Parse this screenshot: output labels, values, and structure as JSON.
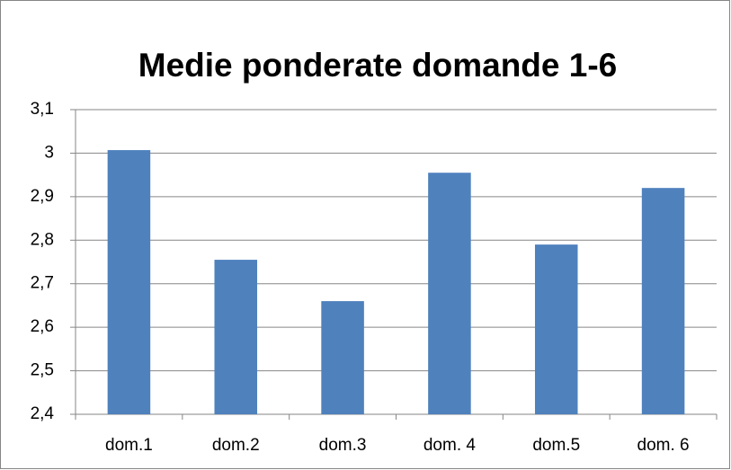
{
  "chart_data": {
    "type": "bar",
    "title": "Medie ponderate domande 1-6",
    "categories": [
      "dom.1",
      "dom.2",
      "dom.3",
      "dom. 4",
      "dom.5",
      "dom. 6"
    ],
    "values": [
      3.007,
      2.755,
      2.66,
      2.955,
      2.79,
      2.92
    ],
    "color": "#4f81bd",
    "ylim": [
      2.4,
      3.1
    ],
    "yticks": [
      {
        "value": 2.4,
        "label": "2,4"
      },
      {
        "value": 2.5,
        "label": "2,5"
      },
      {
        "value": 2.6,
        "label": "2,6"
      },
      {
        "value": 2.7,
        "label": "2,7"
      },
      {
        "value": 2.8,
        "label": "2,8"
      },
      {
        "value": 2.9,
        "label": "2,9"
      },
      3,
      {
        "value": 3.1,
        "label": "3,1"
      }
    ],
    "grid": true
  }
}
